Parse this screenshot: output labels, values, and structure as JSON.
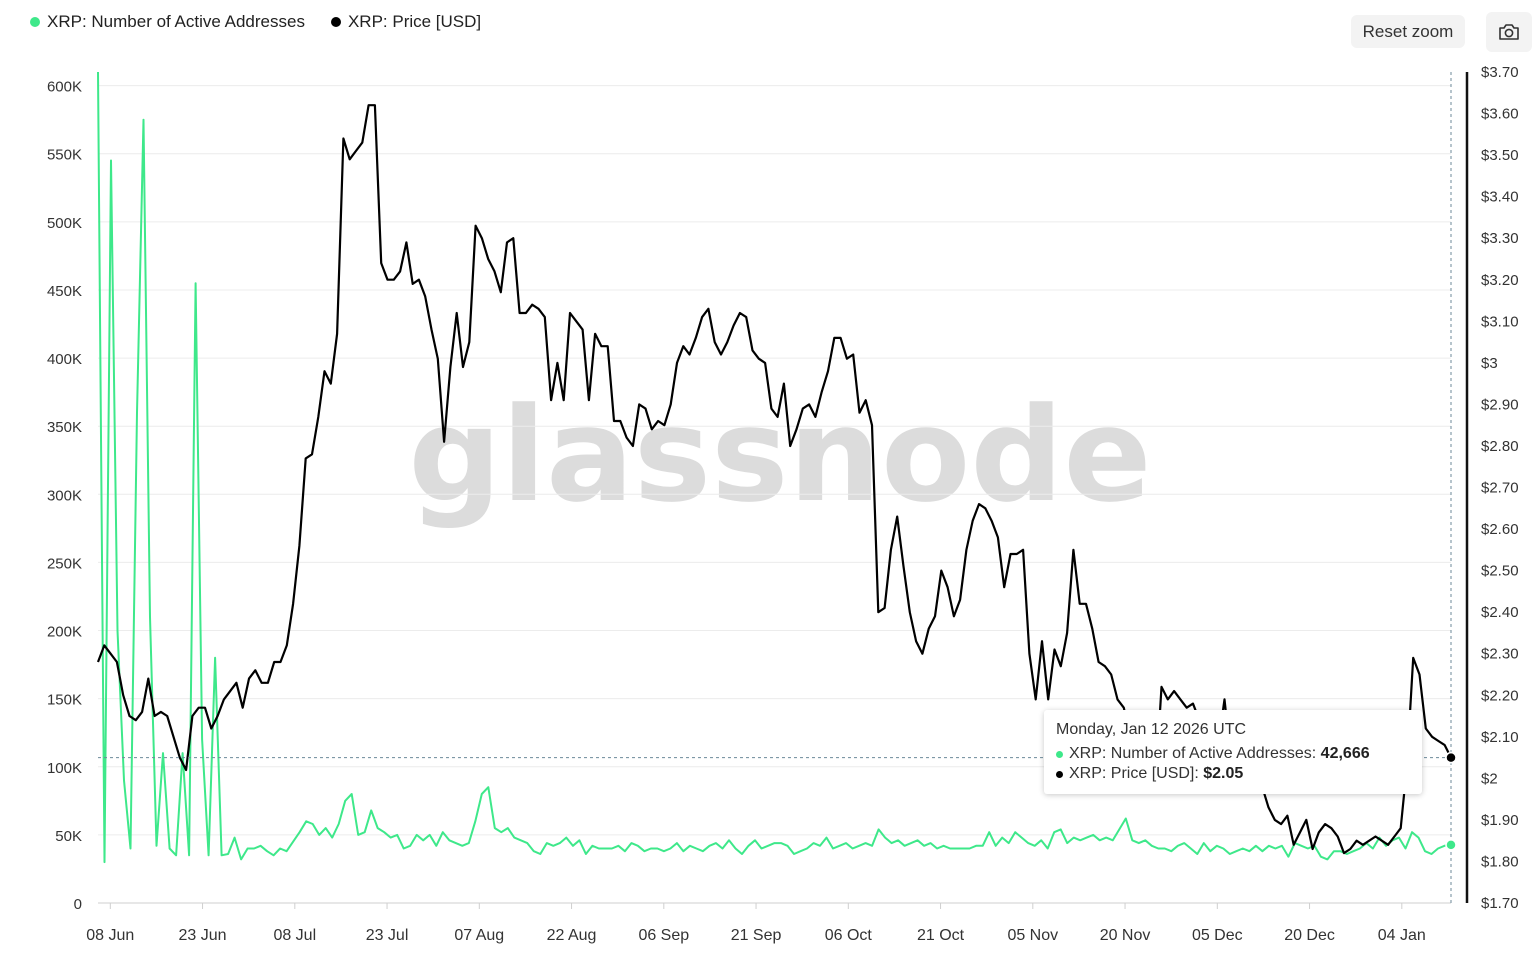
{
  "legend": {
    "active_label": "XRP: Number of Active Addresses",
    "price_label": "XRP: Price [USD]"
  },
  "toolbar": {
    "reset_zoom": "Reset zoom",
    "camera_icon": "camera-icon"
  },
  "watermark": "glassnode",
  "colors": {
    "active": "#3ee88a",
    "price": "#000000",
    "grid": "#ececec"
  },
  "tooltip": {
    "date": "Monday, Jan 12 2026 UTC",
    "active_label": "XRP: Number of Active Addresses: ",
    "active_value": "42,666",
    "price_label": "XRP: Price [USD]: ",
    "price_value": "$2.05"
  },
  "chart_data": {
    "type": "line",
    "x_start": "2025-06-06",
    "x_end": "2026-01-12",
    "x_tick_labels": [
      "08 Jun",
      "23 Jun",
      "08 Jul",
      "23 Jul",
      "07 Aug",
      "22 Aug",
      "06 Sep",
      "21 Sep",
      "06 Oct",
      "21 Oct",
      "05 Nov",
      "20 Nov",
      "05 Dec",
      "20 Dec",
      "04 Jan"
    ],
    "y_left_ticks": [
      "0",
      "50K",
      "100K",
      "150K",
      "200K",
      "250K",
      "300K",
      "350K",
      "400K",
      "450K",
      "500K",
      "550K",
      "600K"
    ],
    "y_left_range": [
      0,
      610000
    ],
    "y_right_ticks": [
      "$1.70",
      "$1.80",
      "$1.90",
      "$2",
      "$2.10",
      "$2.20",
      "$2.30",
      "$2.40",
      "$2.50",
      "$2.60",
      "$2.70",
      "$2.80",
      "$2.90",
      "$3",
      "$3.10",
      "$3.20",
      "$3.30",
      "$3.40",
      "$3.50",
      "$3.60",
      "$3.70"
    ],
    "y_right_range": [
      1.7,
      3.7
    ],
    "series": [
      {
        "name": "XRP: Number of Active Addresses",
        "axis": "left",
        "values": [
          610000,
          30000,
          545000,
          200000,
          90000,
          40000,
          360000,
          575000,
          210000,
          42000,
          110000,
          40000,
          35000,
          110000,
          35000,
          455000,
          120000,
          35000,
          180000,
          35000,
          36000,
          48000,
          32000,
          40000,
          40000,
          42000,
          38000,
          35000,
          40000,
          38000,
          45000,
          52000,
          60000,
          58000,
          50000,
          55000,
          48000,
          58000,
          75000,
          80000,
          50000,
          52000,
          68000,
          55000,
          52000,
          48000,
          50000,
          40000,
          42000,
          50000,
          46000,
          50000,
          42000,
          52000,
          46000,
          44000,
          42000,
          44000,
          60000,
          80000,
          85000,
          55000,
          52000,
          55000,
          48000,
          46000,
          44000,
          38000,
          36000,
          44000,
          42000,
          44000,
          48000,
          42000,
          46000,
          36000,
          42000,
          40000,
          40000,
          40000,
          42000,
          38000,
          44000,
          42000,
          38000,
          40000,
          40000,
          38000,
          40000,
          44000,
          38000,
          42000,
          40000,
          38000,
          42000,
          44000,
          40000,
          46000,
          40000,
          36000,
          42000,
          46000,
          40000,
          42000,
          44000,
          44000,
          42000,
          36000,
          38000,
          40000,
          44000,
          42000,
          48000,
          40000,
          42000,
          44000,
          40000,
          42000,
          44000,
          42000,
          54000,
          48000,
          44000,
          46000,
          42000,
          44000,
          46000,
          42000,
          44000,
          40000,
          42000,
          40000,
          40000,
          40000,
          40000,
          42000,
          42000,
          52000,
          42000,
          48000,
          44000,
          52000,
          48000,
          44000,
          42000,
          46000,
          40000,
          52000,
          54000,
          44000,
          48000,
          46000,
          48000,
          50000,
          46000,
          48000,
          46000,
          54000,
          62000,
          46000,
          44000,
          46000,
          42000,
          40000,
          40000,
          38000,
          42000,
          44000,
          40000,
          36000,
          44000,
          38000,
          42000,
          40000,
          36000,
          38000,
          40000,
          38000,
          42000,
          38000,
          42000,
          40000,
          42000,
          34000,
          44000,
          42000,
          40000,
          42000,
          34000,
          32000,
          38000,
          38000,
          36000,
          38000,
          40000,
          44000,
          40000,
          48000,
          42000,
          46000,
          48000,
          40000,
          52000,
          48000,
          38000,
          36000,
          40000,
          42000,
          42666
        ]
      },
      {
        "name": "XRP: Price [USD]",
        "axis": "right",
        "values": [
          2.28,
          2.32,
          2.3,
          2.28,
          2.2,
          2.15,
          2.14,
          2.16,
          2.24,
          2.15,
          2.16,
          2.15,
          2.1,
          2.05,
          2.02,
          2.15,
          2.17,
          2.17,
          2.12,
          2.15,
          2.19,
          2.21,
          2.23,
          2.17,
          2.24,
          2.26,
          2.23,
          2.23,
          2.28,
          2.28,
          2.32,
          2.42,
          2.56,
          2.77,
          2.78,
          2.87,
          2.98,
          2.95,
          3.07,
          3.54,
          3.49,
          3.51,
          3.53,
          3.62,
          3.62,
          3.24,
          3.2,
          3.2,
          3.22,
          3.29,
          3.19,
          3.2,
          3.16,
          3.08,
          3.01,
          2.81,
          2.99,
          3.12,
          2.99,
          3.05,
          3.33,
          3.3,
          3.25,
          3.22,
          3.17,
          3.29,
          3.3,
          3.12,
          3.12,
          3.14,
          3.13,
          3.11,
          2.91,
          3.0,
          2.91,
          3.12,
          3.1,
          3.08,
          2.91,
          3.07,
          3.04,
          3.04,
          2.86,
          2.86,
          2.82,
          2.8,
          2.9,
          2.89,
          2.84,
          2.86,
          2.85,
          2.9,
          3.0,
          3.04,
          3.02,
          3.06,
          3.11,
          3.13,
          3.05,
          3.02,
          3.05,
          3.09,
          3.12,
          3.11,
          3.03,
          3.01,
          3.0,
          2.89,
          2.87,
          2.95,
          2.8,
          2.84,
          2.89,
          2.9,
          2.87,
          2.93,
          2.98,
          3.06,
          3.06,
          3.01,
          3.02,
          2.88,
          2.91,
          2.85,
          2.4,
          2.41,
          2.55,
          2.63,
          2.51,
          2.4,
          2.33,
          2.3,
          2.36,
          2.39,
          2.5,
          2.46,
          2.39,
          2.43,
          2.55,
          2.62,
          2.66,
          2.65,
          2.62,
          2.58,
          2.46,
          2.54,
          2.54,
          2.55,
          2.3,
          2.19,
          2.33,
          2.19,
          2.31,
          2.27,
          2.35,
          2.55,
          2.42,
          2.42,
          2.36,
          2.28,
          2.27,
          2.25,
          2.19,
          2.17,
          2.1,
          2.02,
          1.97,
          2.0,
          1.97,
          2.22,
          2.19,
          2.21,
          2.19,
          2.17,
          2.18,
          2.14,
          2.16,
          2.09,
          2.08,
          2.19,
          2.05,
          2.02,
          2.0,
          2.02,
          2.0,
          1.98,
          1.93,
          1.9,
          1.89,
          1.91,
          1.84,
          1.87,
          1.9,
          1.83,
          1.87,
          1.89,
          1.88,
          1.86,
          1.82,
          1.83,
          1.85,
          1.84,
          1.85,
          1.86,
          1.85,
          1.84,
          1.86,
          1.88,
          2.03,
          2.29,
          2.25,
          2.12,
          2.1,
          2.09,
          2.08,
          2.05
        ]
      }
    ]
  }
}
